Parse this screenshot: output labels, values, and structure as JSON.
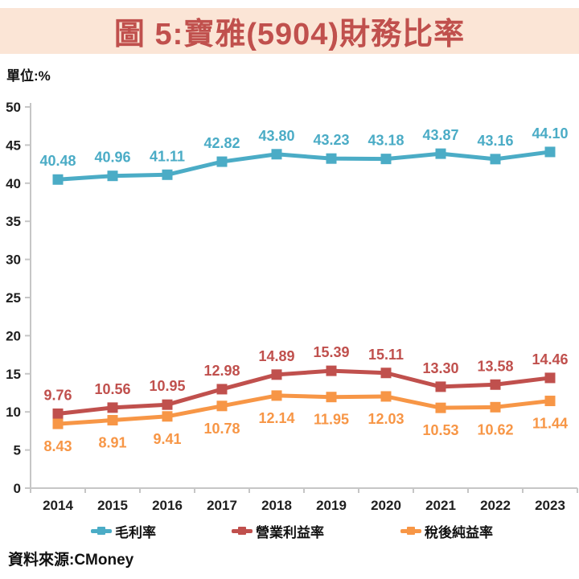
{
  "title": "圖 5:寶雅(5904)財務比率",
  "unit_label": "單位:%",
  "source_label": "資料來源:CMoney",
  "colors": {
    "banner_background": "#FBE5D6",
    "title_text": "#C0504D",
    "axis_line": "#C6C6C6",
    "axis_text": "#1F1F1F",
    "series_gross": "#4BACC6",
    "series_operating": "#C0504D",
    "series_net": "#F79646"
  },
  "chart_data": {
    "type": "line",
    "title": "圖 5:寶雅(5904)財務比率",
    "xlabel": "",
    "ylabel": "單位:%",
    "x": [
      "2014",
      "2015",
      "2016",
      "2017",
      "2018",
      "2019",
      "2020",
      "2021",
      "2022",
      "2023"
    ],
    "series": [
      {
        "name": "毛利率",
        "color": "#4BACC6",
        "marker": "square",
        "label_position": "above",
        "values": [
          40.48,
          40.96,
          41.11,
          42.82,
          43.8,
          43.23,
          43.18,
          43.87,
          43.16,
          44.1
        ]
      },
      {
        "name": "營業利益率",
        "color": "#C0504D",
        "marker": "square",
        "label_position": "above",
        "values": [
          9.76,
          10.56,
          10.95,
          12.98,
          14.89,
          15.39,
          15.11,
          13.3,
          13.58,
          14.46
        ]
      },
      {
        "name": "稅後純益率",
        "color": "#F79646",
        "marker": "square",
        "label_position": "below",
        "values": [
          8.43,
          8.91,
          9.41,
          10.78,
          12.14,
          11.95,
          12.03,
          10.53,
          10.62,
          11.44
        ]
      }
    ],
    "ylim": [
      0,
      50
    ],
    "ytick_step": 5,
    "grid": false,
    "legend_position": "bottom",
    "data_labels": true,
    "data_label_decimals": 2
  }
}
